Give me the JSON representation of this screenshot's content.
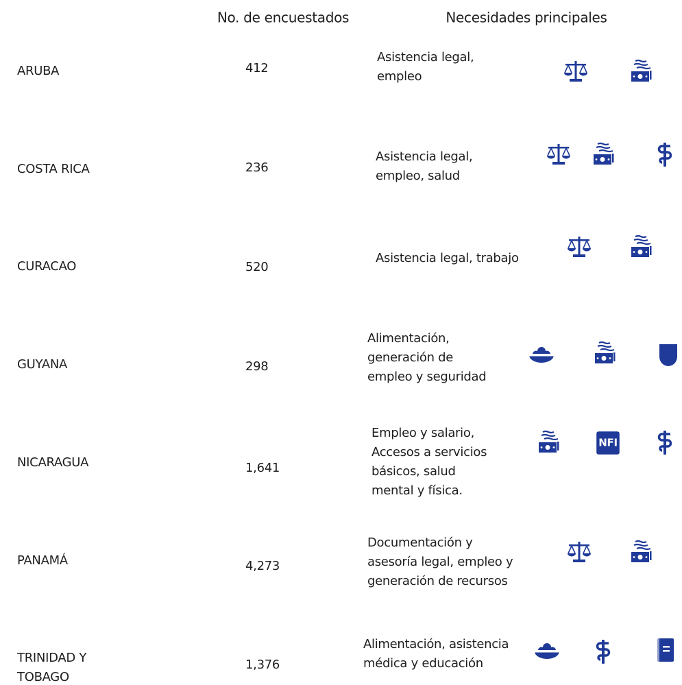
{
  "header": {
    "count": "No. de encuestados",
    "needs": "Necesidades principales"
  },
  "table": {
    "rows": [
      {
        "country": [
          "ARUBA"
        ],
        "count": "412",
        "needs": [
          "Asistencia legal,",
          "empleo"
        ]
      },
      {
        "country": [
          "COSTA RICA"
        ],
        "count": "236",
        "needs": [
          "Asistencia legal,",
          "empleo, salud"
        ]
      },
      {
        "country": [
          "CURACAO"
        ],
        "count": "520",
        "needs": [
          "Asistencia legal, trabajo"
        ]
      },
      {
        "country": [
          "GUYANA"
        ],
        "count": "298",
        "needs": [
          "Alimentación,",
          "generación de",
          "empleo y seguridad"
        ]
      },
      {
        "country": [
          "NICARAGUA"
        ],
        "count": "1,641",
        "needs": [
          "Empleo y salario,",
          "Accesos a servicios",
          "básicos, salud",
          "mental y física."
        ],
        "icon_text": "NFI"
      },
      {
        "country": [
          "PANAMÁ"
        ],
        "count": "4,273",
        "needs": [
          "Documentación y",
          "asesoría legal, empleo y",
          "generación de recursos"
        ]
      },
      {
        "country": [
          "TRINIDAD Y",
          "TOBAGO"
        ],
        "count": "1,376",
        "needs": [
          "Alimentación, asistencia",
          "médica y educación"
        ]
      }
    ]
  }
}
